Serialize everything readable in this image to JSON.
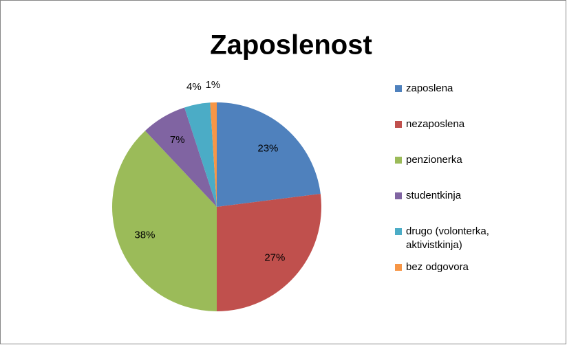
{
  "chart_data": {
    "type": "pie",
    "title": "Zaposlenost",
    "categories": [
      "zaposlena",
      "nezaposlena",
      "penzionerka",
      "studentkinja",
      "drugo (volonterka, aktivistkinja)",
      "bez odgovora"
    ],
    "values": [
      23,
      27,
      38,
      7,
      4,
      1
    ],
    "value_labels": [
      "23%",
      "27%",
      "38%",
      "7%",
      "4%",
      "1%"
    ],
    "colors": [
      "#4f81bd",
      "#c0504d",
      "#9bbb59",
      "#8064a2",
      "#4bacc6",
      "#f79646"
    ],
    "legend": "right"
  }
}
